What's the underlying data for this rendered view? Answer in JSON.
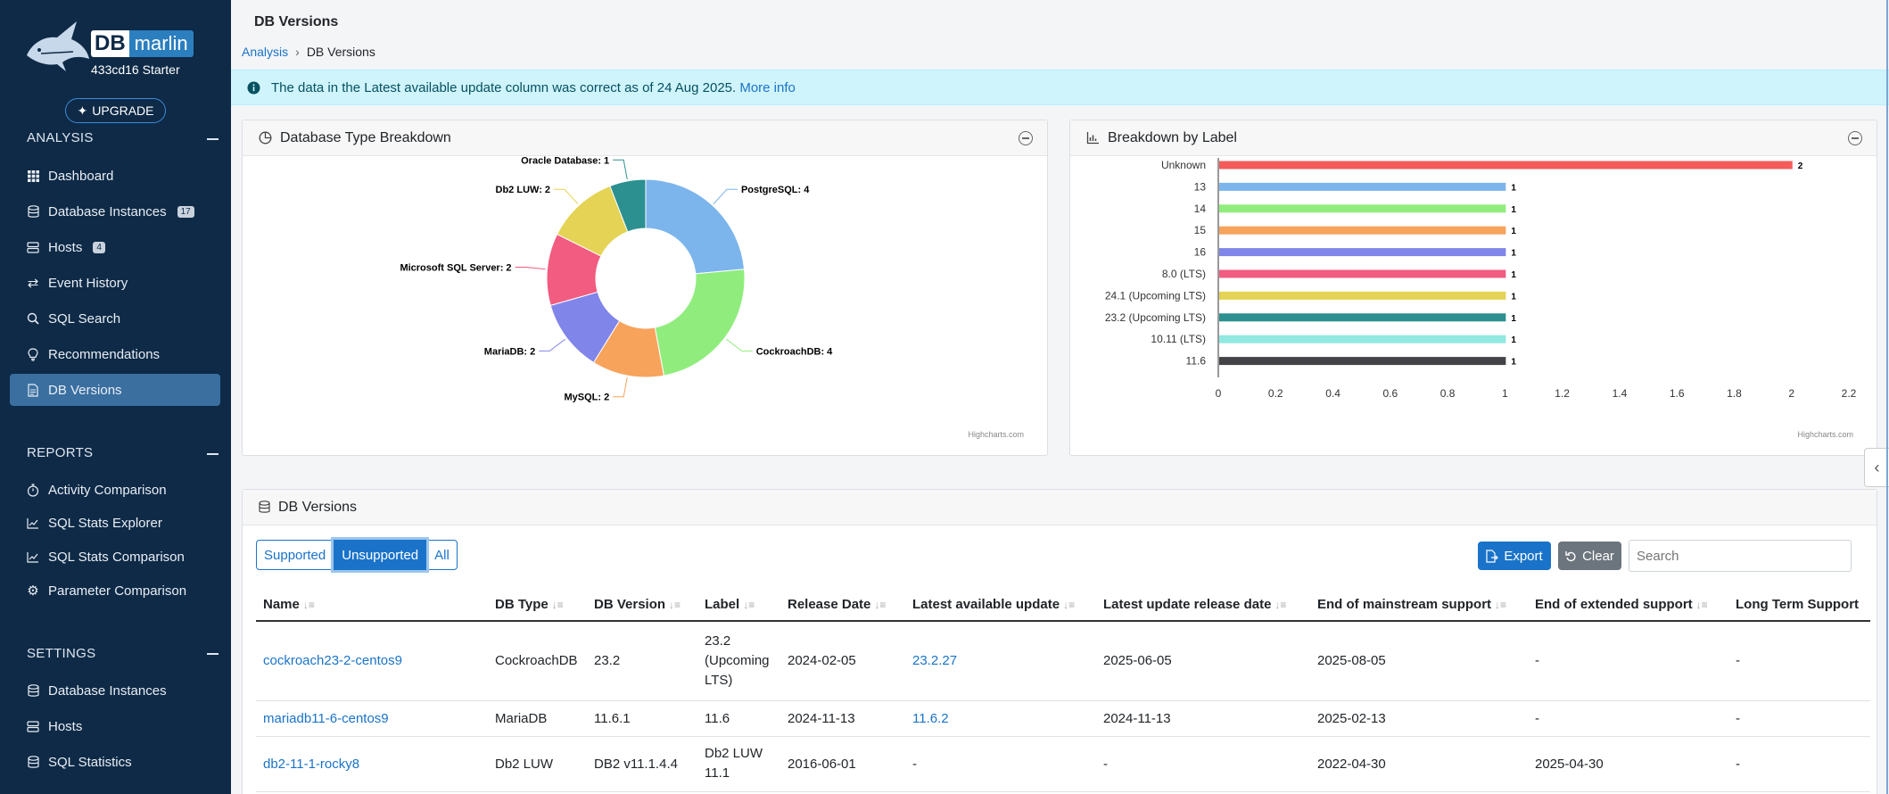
{
  "app": {
    "brand_db": "DB",
    "brand_name": "marlin",
    "instance_label": "433cd16 Starter",
    "upgrade_label": "UPGRADE"
  },
  "sidebar": {
    "analysis_title": "ANALYSIS",
    "analysis_items": [
      {
        "label": "Dashboard",
        "icon": "grid-icon"
      },
      {
        "label": "Database Instances",
        "icon": "database-icon",
        "badge": "17"
      },
      {
        "label": "Hosts",
        "icon": "server-icon",
        "badge": "4"
      },
      {
        "label": "Event History",
        "icon": "exchange-icon"
      },
      {
        "label": "SQL Search",
        "icon": "search-icon"
      },
      {
        "label": "Recommendations",
        "icon": "lightbulb-icon"
      },
      {
        "label": "DB Versions",
        "icon": "file-icon",
        "active": true
      }
    ],
    "reports_title": "REPORTS",
    "reports_items": [
      {
        "label": "Activity Comparison",
        "icon": "stopwatch-icon"
      },
      {
        "label": "SQL Stats Explorer",
        "icon": "chart-line-icon"
      },
      {
        "label": "SQL Stats Comparison",
        "icon": "chart-line-icon"
      },
      {
        "label": "Parameter Comparison",
        "icon": "gear-icon"
      }
    ],
    "settings_title": "SETTINGS",
    "settings_items": [
      {
        "label": "Database Instances",
        "icon": "database-icon"
      },
      {
        "label": "Hosts",
        "icon": "server-icon"
      },
      {
        "label": "SQL Statistics",
        "icon": "database-icon"
      }
    ]
  },
  "header": {
    "title": "DB Versions",
    "breadcrumb_root": "Analysis",
    "breadcrumb_current": "DB Versions"
  },
  "info": {
    "text": "The data in the Latest available update column was correct as of 24 Aug 2025.",
    "link": "More info"
  },
  "pie_card": {
    "title": "Database Type Breakdown",
    "credit": "Highcharts.com"
  },
  "bar_card": {
    "title": "Breakdown by Label",
    "credit": "Highcharts.com"
  },
  "chart_data": [
    {
      "type": "pie",
      "title": "Database Type Breakdown",
      "slices": [
        {
          "name": "PostgreSQL",
          "value": 4,
          "color": "#7cb5ec"
        },
        {
          "name": "CockroachDB",
          "value": 4,
          "color": "#90ed7d"
        },
        {
          "name": "MySQL",
          "value": 2,
          "color": "#f7a35c"
        },
        {
          "name": "MariaDB",
          "value": 2,
          "color": "#8085e9"
        },
        {
          "name": "Microsoft SQL Server",
          "value": 2,
          "color": "#f15c80"
        },
        {
          "name": "Db2 LUW",
          "value": 2,
          "color": "#e4d354"
        },
        {
          "name": "Oracle Database",
          "value": 1,
          "color": "#2b908f"
        }
      ]
    },
    {
      "type": "bar",
      "title": "Breakdown by Label",
      "categories": [
        "Unknown",
        "13",
        "14",
        "15",
        "16",
        "8.0 (LTS)",
        "24.1 (Upcoming LTS)",
        "23.2 (Upcoming LTS)",
        "10.11 (LTS)",
        "11.6"
      ],
      "values": [
        2,
        1,
        1,
        1,
        1,
        1,
        1,
        1,
        1,
        1
      ],
      "colors": [
        "#f45b5b",
        "#7cb5ec",
        "#90ed7d",
        "#f7a35c",
        "#8085e9",
        "#f15c80",
        "#e4d354",
        "#2b908f",
        "#91e8e1",
        "#434348"
      ],
      "xlim": [
        0,
        2.2
      ],
      "ticks": [
        "0",
        "0.2",
        "0.4",
        "0.6",
        "0.8",
        "1",
        "1.2",
        "1.4",
        "1.6",
        "1.8",
        "2",
        "2.2"
      ]
    }
  ],
  "table_card": {
    "title": "DB Versions",
    "filters": [
      "Supported",
      "Unsupported",
      "All"
    ],
    "active_filter": "Unsupported",
    "export_label": "Export",
    "clear_label": "Clear",
    "search_placeholder": "Search",
    "columns": [
      "Name",
      "DB Type",
      "DB Version",
      "Label",
      "Release Date",
      "Latest available update",
      "Latest update release date",
      "End of mainstream support",
      "End of extended support",
      "Long Term Support"
    ],
    "rows": [
      [
        "cockroach23-2-centos9",
        "CockroachDB",
        "23.2",
        "23.2 (Upcoming LTS)",
        "2024-02-05",
        "23.2.27",
        "2025-06-05",
        "2025-08-05",
        "-",
        "-"
      ],
      [
        "mariadb11-6-centos9",
        "MariaDB",
        "11.6.1",
        "11.6",
        "2024-11-13",
        "11.6.2",
        "2024-11-13",
        "2025-02-13",
        "-",
        "-"
      ],
      [
        "db2-11-1-rocky8",
        "Db2 LUW",
        "DB2 v11.1.4.4",
        "Db2 LUW 11.1",
        "2016-06-01",
        "-",
        "-",
        "2022-04-30",
        "2025-04-30",
        "-"
      ]
    ]
  }
}
